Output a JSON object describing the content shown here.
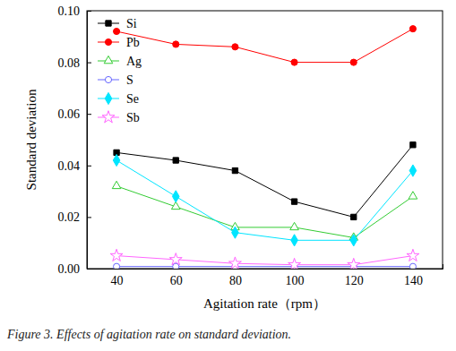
{
  "chart_data": {
    "type": "line",
    "x_label": "Agitation rate（rpm）",
    "y_label": "Standard deviation",
    "caption": "Figure 3. Effects of agitation rate on standard deviation.",
    "x": [
      40,
      60,
      80,
      100,
      120,
      140
    ],
    "xlim": [
      30,
      150
    ],
    "xticks": [
      40,
      60,
      80,
      100,
      120,
      140
    ],
    "ylim": [
      0,
      0.1
    ],
    "yticks": [
      {
        "value": 0,
        "label": "0.00"
      },
      {
        "value": 0.02,
        "label": "0.02"
      },
      {
        "value": 0.04,
        "label": "0.04"
      },
      {
        "value": 0.06,
        "label": "0.06"
      },
      {
        "value": 0.08,
        "label": "0.08"
      },
      {
        "value": 0.1,
        "label": "0.10"
      }
    ],
    "legend": "upper left",
    "grid": false,
    "series": [
      {
        "name": "Si",
        "color": "#000000",
        "marker": "square",
        "values": [
          0.045,
          0.042,
          0.038,
          0.026,
          0.02,
          0.048
        ]
      },
      {
        "name": "Pb",
        "color": "#ff0000",
        "marker": "circle",
        "values": [
          0.092,
          0.087,
          0.086,
          0.08,
          0.08,
          0.093
        ]
      },
      {
        "name": "Ag",
        "color": "#33cc33",
        "marker": "triangle-open",
        "values": [
          0.032,
          0.024,
          0.016,
          0.016,
          0.012,
          0.028
        ]
      },
      {
        "name": "S",
        "color": "#6666ff",
        "marker": "circle-open",
        "values": [
          0.0008,
          0.0008,
          0.0008,
          0.0008,
          0.0008,
          0.0008
        ]
      },
      {
        "name": "Se",
        "color": "#00e5ff",
        "marker": "diamond",
        "values": [
          0.042,
          0.028,
          0.014,
          0.011,
          0.011,
          0.038
        ]
      },
      {
        "name": "Sb",
        "color": "#ff66ff",
        "marker": "star-open",
        "values": [
          0.005,
          0.0035,
          0.002,
          0.0015,
          0.0015,
          0.005
        ]
      }
    ]
  }
}
